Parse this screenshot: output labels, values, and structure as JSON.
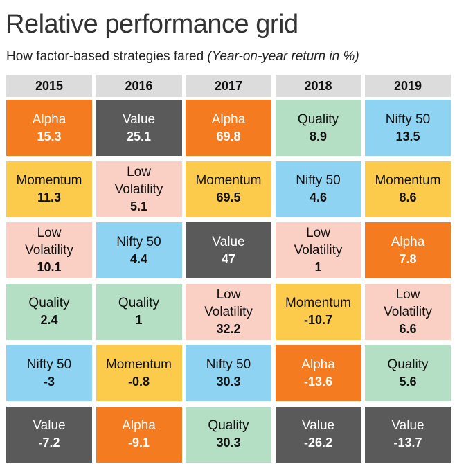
{
  "title": "Relative performance grid",
  "subtitle": {
    "text": "How factor-based strategies fared ",
    "unit": "(Year-on-year return in %)"
  },
  "colors": {
    "Alpha": "#f47b20",
    "Value": "#5a5a5a",
    "Quality": "#b5dfc4",
    "Nifty 50": "#8fd3f2",
    "Momentum": "#fccb4b",
    "Low Volatility": "#fbd0c4",
    "header": "#dcdcdc"
  },
  "chart_data": {
    "type": "table",
    "title": "Relative performance grid",
    "subtitle": "How factor-based strategies fared (Year-on-year return in %)",
    "columns": [
      "2015",
      "2016",
      "2017",
      "2018",
      "2019"
    ],
    "rows": [
      [
        {
          "name": "Alpha",
          "value": "15.3"
        },
        {
          "name": "Value",
          "value": "25.1"
        },
        {
          "name": "Alpha",
          "value": "69.8"
        },
        {
          "name": "Quality",
          "value": "8.9"
        },
        {
          "name": "Nifty 50",
          "value": "13.5"
        }
      ],
      [
        {
          "name": "Momentum",
          "value": "11.3"
        },
        {
          "name": "Low Volatility",
          "value": "5.1"
        },
        {
          "name": "Momentum",
          "value": "69.5"
        },
        {
          "name": "Nifty 50",
          "value": "4.6"
        },
        {
          "name": "Momentum",
          "value": "8.6"
        }
      ],
      [
        {
          "name": "Low Volatility",
          "value": "10.1"
        },
        {
          "name": "Nifty 50",
          "value": "4.4"
        },
        {
          "name": "Value",
          "value": "47"
        },
        {
          "name": "Low Volatility",
          "value": "1"
        },
        {
          "name": "Alpha",
          "value": "7.8"
        }
      ],
      [
        {
          "name": "Quality",
          "value": "2.4"
        },
        {
          "name": "Quality",
          "value": "1"
        },
        {
          "name": "Low Volatility",
          "value": "32.2"
        },
        {
          "name": "Momentum",
          "value": "-10.7"
        },
        {
          "name": "Low Volatility",
          "value": "6.6"
        }
      ],
      [
        {
          "name": "Nifty 50",
          "value": "-3"
        },
        {
          "name": "Momentum",
          "value": "-0.8"
        },
        {
          "name": "Nifty 50",
          "value": "30.3"
        },
        {
          "name": "Alpha",
          "value": "-13.6"
        },
        {
          "name": "Quality",
          "value": "5.6"
        }
      ],
      [
        {
          "name": "Value",
          "value": "-7.2"
        },
        {
          "name": "Alpha",
          "value": "-9.1"
        },
        {
          "name": "Quality",
          "value": "30.3"
        },
        {
          "name": "Value",
          "value": "-26.2"
        },
        {
          "name": "Value",
          "value": "-13.7"
        }
      ]
    ]
  }
}
